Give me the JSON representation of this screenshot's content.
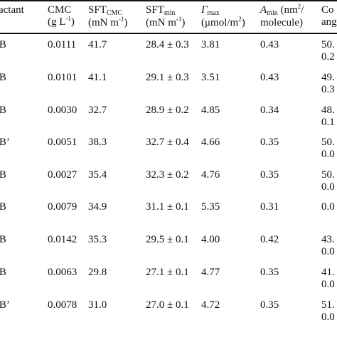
{
  "table": {
    "headers": [
      {
        "line1": "rfactant",
        "line2": ""
      },
      {
        "line1": "CMC",
        "line2_main": "(g L",
        "line2_sup": "-1",
        "line2_end": ")"
      },
      {
        "line1_main": "SFT",
        "line1_sub": "CMC",
        "line2_main": "(mN m",
        "line2_sup": "-1",
        "line2_end": ")"
      },
      {
        "line1_main": "SFT",
        "line1_sub": "min",
        "line2_main": "(mN m",
        "line2_sup": "-1",
        "line2_end": ")"
      },
      {
        "line1_main": "Γ",
        "line1_sub": "max",
        "line2": "(μmol/m",
        "line2_sup": "2",
        "line2_end": ")"
      },
      {
        "line1_main": "A",
        "line1_sub": "min",
        "line1_end": " (nm",
        "line1_sup": "2",
        "line1_tail": "/",
        "line2": "molecule)"
      },
      {
        "line1": "Co",
        "line2": "ang"
      }
    ],
    "rows": [
      {
        "name": "DB",
        "cmc": "0.0111",
        "sft_cmc": "41.7",
        "sft_min": "28.4 ± 0.3",
        "gamma": "3.81",
        "amin": "0.43",
        "c1": "50.",
        "c2": "0.2"
      },
      {
        "name": "DB",
        "cmc": "0.0101",
        "sft_cmc": "41.1",
        "sft_min": "29.1 ± 0.3",
        "gamma": "3.51",
        "amin": "0.43",
        "c1": "49.",
        "c2": "0.3"
      },
      {
        "name": "DB",
        "cmc": "0.0030",
        "sft_cmc": "32.7",
        "sft_min": "28.9 ± 0.2",
        "gamma": "4.85",
        "amin": "0.34",
        "c1": "48.",
        "c2": "0.1"
      },
      {
        "name": "DB’",
        "cmc": "0.0051",
        "sft_cmc": "38.3",
        "sft_min": "32.7 ± 0.4",
        "gamma": "4.66",
        "amin": "0.35",
        "c1": "50.",
        "c2": "0.0"
      },
      {
        "name": "DB",
        "cmc": "0.0027",
        "sft_cmc": "35.4",
        "sft_min": "32.3 ± 0.2",
        "gamma": "4.76",
        "amin": "0.35",
        "c1": "50.",
        "c2": "0.0"
      },
      {
        "name": "DB",
        "cmc": "0.0079",
        "sft_cmc": "34.9",
        "sft_min": "31.1 ± 0.1",
        "gamma": "5.35",
        "amin": "0.31",
        "c1": "0.0",
        "c2": ""
      },
      {
        "name": "DB",
        "cmc": "0.0142",
        "sft_cmc": "35.3",
        "sft_min": "29.5 ± 0.1",
        "gamma": "4.00",
        "amin": "0.42",
        "c1": "43.",
        "c2": "0.0"
      },
      {
        "name": "DB",
        "cmc": "0.0063",
        "sft_cmc": "29.8",
        "sft_min": "27.1 ± 0.1",
        "gamma": "4.77",
        "amin": "0.35",
        "c1": "41.",
        "c2": "0.0"
      },
      {
        "name": "DB’",
        "cmc": "0.0078",
        "sft_cmc": "31.0",
        "sft_min": "27.0 ± 0.1",
        "gamma": "4.72",
        "amin": "0.35",
        "c1": "51.",
        "c2": "0.0"
      }
    ]
  }
}
